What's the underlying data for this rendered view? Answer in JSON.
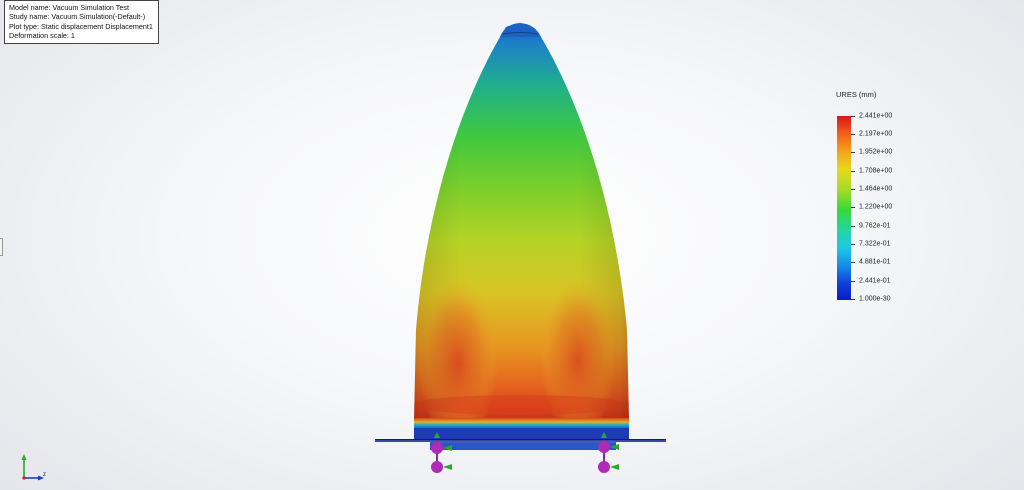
{
  "study_info": {
    "model_name": "Model name: Vacuum Simulation Test",
    "study_name": "Study name: Vacuum Simulation(-Default-)",
    "plot_type": "Plot type: Static displacement Displacement1",
    "deformation_scale": "Deformation scale: 1"
  },
  "legend": {
    "title": "URES (mm)",
    "labels": [
      "2.441e+00",
      "2.197e+00",
      "1.952e+00",
      "1.708e+00",
      "1.464e+00",
      "1.220e+00",
      "9.762e-01",
      "7.322e-01",
      "4.881e-01",
      "2.441e-01",
      "1.000e-30"
    ],
    "colors": [
      "#d7191c",
      "#f05a1a",
      "#f4a21a",
      "#e8d81c",
      "#a6db2a",
      "#38d838",
      "#24d6a0",
      "#1ec6e8",
      "#1688e6",
      "#1040d8",
      "#0a1cc8"
    ]
  },
  "triad": {
    "z_label": "z"
  },
  "colors": {
    "fixture": "#b02ab8",
    "fixture_arrow": "#2aa82a",
    "base_plate": "#1a2fb0"
  }
}
